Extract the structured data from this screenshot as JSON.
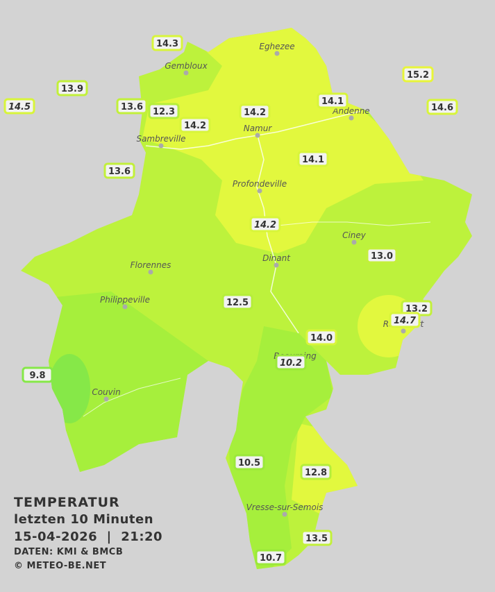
{
  "title": {
    "line1": "TEMPERATUR",
    "line2": "letzten 10 Minuten",
    "line3": "15-04-2026  |  21:20",
    "credits": [
      "DATEN: KMI & BMCB",
      "© METEO-BE.NET"
    ]
  },
  "places": [
    "Eghezee",
    "Gembloux",
    "Andenne",
    "Namur",
    "Sambreville",
    "Profondeville",
    "Ciney",
    "Dinant",
    "Florennes",
    "Philippeville",
    "Rochefort",
    "Beauraing",
    "Couvin",
    "Vresse-sur-Semois"
  ],
  "stations": [
    {
      "label": "14.3",
      "italic": false
    },
    {
      "label": "13.9",
      "italic": false
    },
    {
      "label": "14.5",
      "italic": true
    },
    {
      "label": "13.6",
      "italic": false
    },
    {
      "label": "12.3",
      "italic": false
    },
    {
      "label": "14.2",
      "italic": false
    },
    {
      "label": "14.2",
      "italic": false
    },
    {
      "label": "14.1",
      "italic": false
    },
    {
      "label": "15.2",
      "italic": false
    },
    {
      "label": "14.6",
      "italic": false
    },
    {
      "label": "13.6",
      "italic": false
    },
    {
      "label": "14.1",
      "italic": false
    },
    {
      "label": "14.2",
      "italic": true
    },
    {
      "label": "13.0",
      "italic": false
    },
    {
      "label": "12.5",
      "italic": false
    },
    {
      "label": "13.2",
      "italic": false
    },
    {
      "label": "14.7",
      "italic": true
    },
    {
      "label": "14.0",
      "italic": false
    },
    {
      "label": "10.2",
      "italic": true
    },
    {
      "label": "9.8",
      "italic": false
    },
    {
      "label": "10.5",
      "italic": false
    },
    {
      "label": "12.8",
      "italic": false
    },
    {
      "label": "13.5",
      "italic": false
    },
    {
      "label": "10.7",
      "italic": false
    }
  ]
}
